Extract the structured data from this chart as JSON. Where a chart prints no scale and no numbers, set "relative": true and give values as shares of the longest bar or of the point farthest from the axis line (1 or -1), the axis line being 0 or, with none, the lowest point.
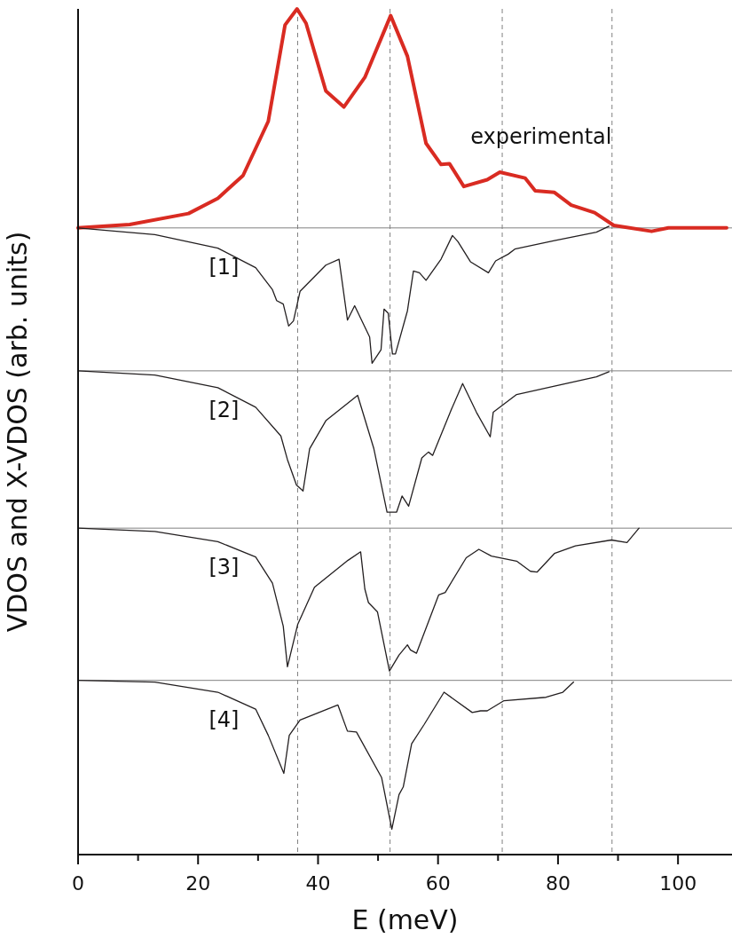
{
  "chart_data": {
    "type": "line",
    "relative": true,
    "xlabel": "E (meV)",
    "ylabel": "VDOS and X-VDOS (arb. units)",
    "xlim": [
      0,
      109
    ],
    "xticks": [
      0,
      {
        "value": 10,
        "label": null
      },
      20,
      {
        "value": 30,
        "label": null
      },
      40,
      {
        "value": 50,
        "label": null
      },
      60,
      {
        "value": 70,
        "label": null
      },
      80,
      {
        "value": 90,
        "label": null
      },
      100
    ],
    "grid": false,
    "marker": "none",
    "line_style": "solid",
    "series": [
      {
        "name": "experimental",
        "color": "#d92b22",
        "x": [
          0,
          8.6,
          18.4,
          23.3,
          27.5,
          31.7,
          34.5,
          36.5,
          38.0,
          41.3,
          44.3,
          47.8,
          52.1,
          54.9,
          58.0,
          60.5,
          61.9,
          64.3,
          68.2,
          70.3,
          74.5,
          76.2,
          79.4,
          82.2,
          86.1,
          89.3,
          95.6,
          98.4,
          102.6,
          108.1
        ],
        "values": [
          0.741,
          0.745,
          0.758,
          0.776,
          0.803,
          0.867,
          0.981,
          1.0,
          0.983,
          0.903,
          0.884,
          0.919,
          0.992,
          0.944,
          0.841,
          0.816,
          0.817,
          0.79,
          0.798,
          0.807,
          0.8,
          0.785,
          0.783,
          0.768,
          0.759,
          0.744,
          0.737,
          0.741,
          0.741,
          0.741
        ]
      },
      {
        "name": "[1]",
        "color": "#231f20",
        "x": [
          0,
          12.8,
          23.3,
          29.6,
          32.4,
          33.1,
          34.2,
          35.1,
          35.9,
          37.0,
          41.3,
          43.5,
          44.9,
          46.1,
          48.6,
          49.0,
          50.5,
          51.0,
          51.7,
          52.4,
          52.9,
          54.9,
          55.9,
          56.9,
          58.0,
          60.5,
          62.4,
          63.3,
          65.4,
          68.4,
          69.6,
          71.7,
          72.8,
          79.4,
          86.4,
          88.5
        ],
        "values": [
          0.741,
          0.733,
          0.717,
          0.694,
          0.668,
          0.655,
          0.651,
          0.625,
          0.631,
          0.666,
          0.697,
          0.704,
          0.632,
          0.649,
          0.612,
          0.581,
          0.597,
          0.645,
          0.64,
          0.592,
          0.592,
          0.643,
          0.69,
          0.688,
          0.679,
          0.704,
          0.732,
          0.725,
          0.701,
          0.688,
          0.702,
          0.71,
          0.716,
          0.726,
          0.736,
          0.743
        ]
      },
      {
        "name": "[2]",
        "color": "#231f20",
        "x": [
          0,
          12.8,
          23.3,
          29.6,
          33.8,
          34.9,
          36.4,
          37.5,
          38.6,
          41.3,
          46.6,
          49.3,
          51.5,
          53.1,
          54.0,
          55.1,
          57.3,
          58.4,
          59.1,
          62.2,
          64.1,
          66.4,
          68.7,
          69.2,
          73.1,
          79.4,
          86.4,
          88.5
        ],
        "values": [
          0.572,
          0.567,
          0.552,
          0.529,
          0.495,
          0.467,
          0.437,
          0.43,
          0.48,
          0.513,
          0.543,
          0.48,
          0.405,
          0.405,
          0.424,
          0.412,
          0.469,
          0.476,
          0.472,
          0.526,
          0.557,
          0.523,
          0.494,
          0.523,
          0.544,
          0.554,
          0.565,
          0.571
        ]
      },
      {
        "name": "[3]",
        "color": "#231f20",
        "x": [
          0,
          12.8,
          23.3,
          29.6,
          32.4,
          34.2,
          34.9,
          36.6,
          39.4,
          45.0,
          47.1,
          47.8,
          48.4,
          49.9,
          51.9,
          53.5,
          54.9,
          55.4,
          56.4,
          60.1,
          61.2,
          64.7,
          66.8,
          68.9,
          73.1,
          75.4,
          76.5,
          79.4,
          82.9,
          88.9,
          91.5,
          93.5
        ],
        "values": [
          0.386,
          0.382,
          0.37,
          0.352,
          0.321,
          0.27,
          0.222,
          0.272,
          0.316,
          0.348,
          0.358,
          0.314,
          0.298,
          0.287,
          0.217,
          0.236,
          0.248,
          0.242,
          0.238,
          0.307,
          0.31,
          0.351,
          0.361,
          0.353,
          0.347,
          0.335,
          0.334,
          0.356,
          0.365,
          0.372,
          0.369,
          0.386
        ]
      },
      {
        "name": "[4]",
        "color": "#231f20",
        "x": [
          0,
          12.8,
          23.3,
          29.6,
          31.7,
          34.3,
          35.2,
          37.0,
          43.3,
          44.9,
          46.4,
          50.6,
          52.3,
          53.5,
          54.2,
          55.6,
          57.7,
          61.0,
          65.7,
          67.1,
          68.2,
          71.0,
          78.0,
          80.8,
          82.6
        ],
        "values": [
          0.206,
          0.204,
          0.192,
          0.172,
          0.141,
          0.096,
          0.141,
          0.159,
          0.177,
          0.146,
          0.145,
          0.091,
          0.03,
          0.071,
          0.08,
          0.131,
          0.154,
          0.192,
          0.168,
          0.17,
          0.17,
          0.182,
          0.186,
          0.192,
          0.204
        ]
      }
    ],
    "ref_lines": [
      {
        "axis": "y",
        "value": 0.741,
        "color": "#808080",
        "line_style": "solid"
      },
      {
        "axis": "y",
        "value": 0.572,
        "color": "#808080",
        "line_style": "solid"
      },
      {
        "axis": "y",
        "value": 0.386,
        "color": "#808080",
        "line_style": "solid"
      },
      {
        "axis": "y",
        "value": 0.206,
        "color": "#808080",
        "line_style": "solid"
      },
      {
        "axis": "x",
        "value": 36.6,
        "color": "#808080",
        "line_style": "dashed"
      },
      {
        "axis": "x",
        "value": 52.0,
        "color": "#808080",
        "line_style": "dashed"
      },
      {
        "axis": "x",
        "value": 70.7,
        "color": "#808080",
        "line_style": "dashed"
      },
      {
        "axis": "x",
        "value": 89.0,
        "color": "#808080",
        "line_style": "dashed"
      }
    ]
  }
}
